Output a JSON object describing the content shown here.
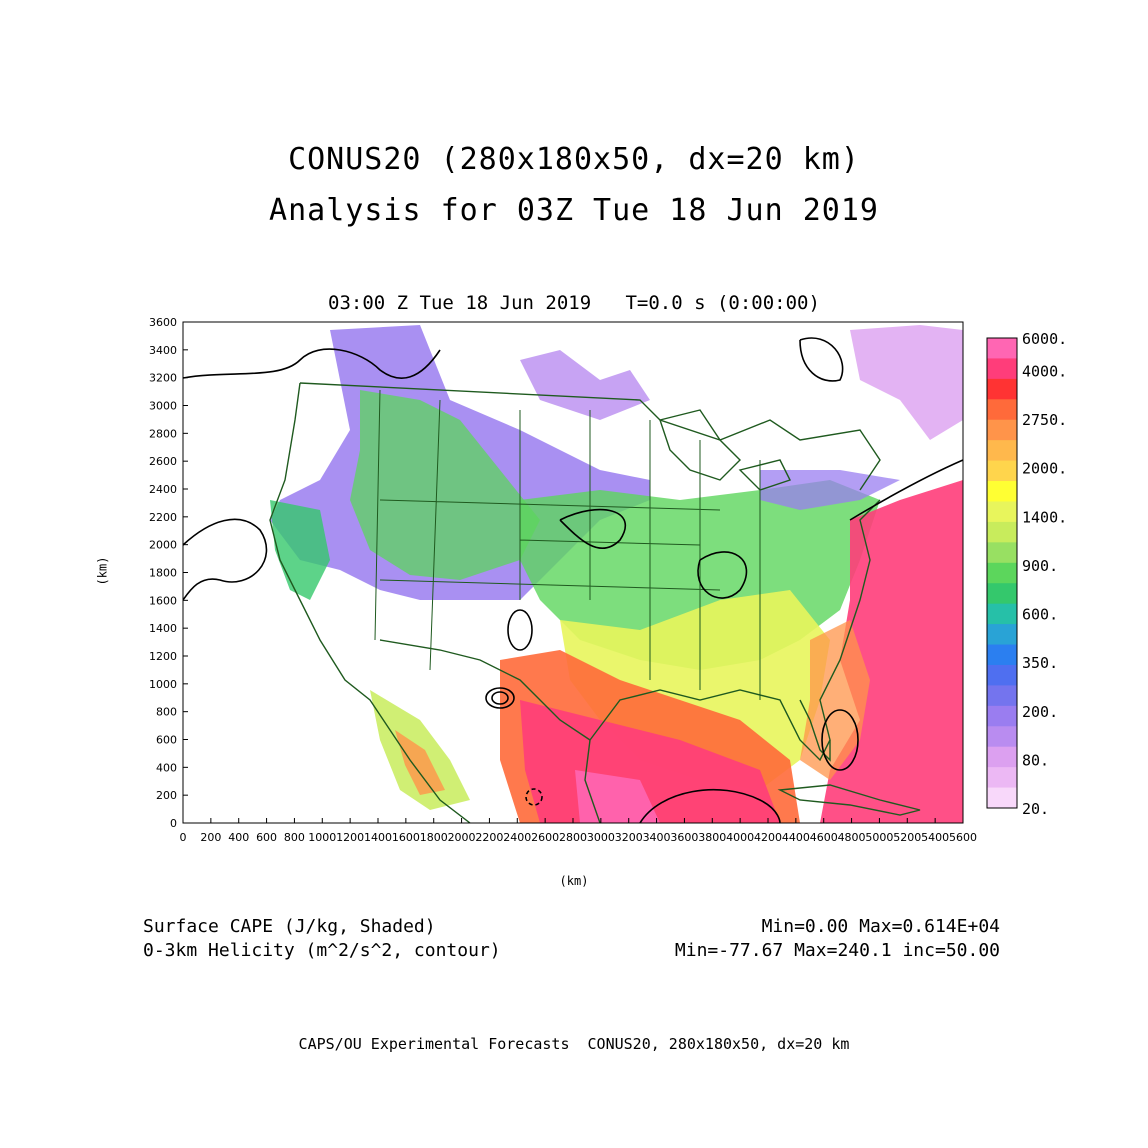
{
  "title": {
    "line1": "CONUS20 (280x180x50, dx=20 km)",
    "line2": "Analysis for 03Z Tue 18 Jun 2019"
  },
  "subtitle": "03:00 Z Tue 18 Jun 2019   T=0.0 s (0:00:00)",
  "axes": {
    "xlabel": "(km)",
    "ylabel": "(km)",
    "x_ticks": [
      "0",
      "200",
      "400",
      "600",
      "800",
      "1000",
      "1200",
      "1400",
      "1600",
      "1800",
      "2000",
      "2200",
      "2400",
      "2600",
      "2800",
      "3000",
      "3200",
      "3400",
      "3600",
      "3800",
      "4000",
      "4200",
      "4400",
      "4600",
      "4800",
      "5000",
      "5200",
      "5400",
      "5600"
    ],
    "y_ticks": [
      "0",
      "200",
      "400",
      "600",
      "800",
      "1000",
      "1200",
      "1400",
      "1600",
      "1800",
      "2000",
      "2200",
      "2400",
      "2600",
      "2800",
      "3000",
      "3200",
      "3400",
      "3600"
    ],
    "xlim": [
      0,
      5600
    ],
    "ylim": [
      0,
      3600
    ]
  },
  "colorbar": {
    "labels": [
      "6000.",
      "4000.",
      "2750.",
      "2000.",
      "1400.",
      "900.",
      "600.",
      "350.",
      "200.",
      "80.",
      "20."
    ],
    "colors": [
      "#ff66b3",
      "#ff3d7a",
      "#ff3333",
      "#ff6a3a",
      "#ff944a",
      "#ffb84c",
      "#ffd54c",
      "#ffff33",
      "#e8f55c",
      "#c8ec5c",
      "#98e062",
      "#5cd65c",
      "#34c86c",
      "#26c0a8",
      "#29a3d6",
      "#2b7ff0",
      "#4f6ff0",
      "#7474ee",
      "#9a7df0",
      "#b98cf0",
      "#dca0f0",
      "#ecb8f4",
      "#f8d8fa"
    ],
    "label_positions": [
      0,
      2,
      5,
      8,
      11,
      14,
      17,
      20,
      23,
      26,
      29
    ]
  },
  "fields": {
    "shaded": "Surface CAPE (J/kg, Shaded)",
    "shaded_stats": "Min=0.00 Max=0.614E+04",
    "contour": "0-3km Helicity (m^2/s^2, contour)",
    "contour_stats": "Min=-77.67 Max=240.1 inc=50.00"
  },
  "colors": {
    "map_lines": "#1f5a1f",
    "contours": "#000000"
  },
  "footer": "CAPS/OU Experimental Forecasts  CONUS20, 280x180x50, dx=20 km"
}
